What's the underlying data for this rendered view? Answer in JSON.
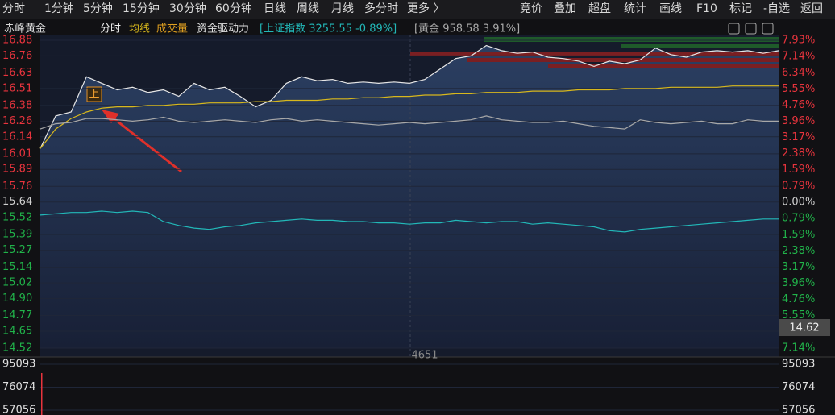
{
  "toolbar": {
    "tabs": [
      "分时",
      "1分钟",
      "5分钟",
      "15分钟",
      "30分钟",
      "60分钟",
      "日线",
      "周线",
      "月线",
      "多分时",
      "更多 〉"
    ],
    "actions": [
      "竞价",
      "叠加",
      "超盘",
      "统计",
      "画线",
      "F10",
      "标记",
      "-自选",
      "返回"
    ]
  },
  "legend": {
    "stock": "赤峰黄金",
    "extra": [
      "成交量",
      "资金驱动力"
    ]
  },
  "chart_data": {
    "type": "line",
    "x": [
      0,
      5,
      10,
      15,
      20,
      25,
      30,
      35,
      40,
      45,
      50,
      55,
      60,
      65,
      70,
      75,
      80,
      85,
      90,
      95,
      100,
      105,
      110,
      115,
      120,
      125,
      130,
      135,
      140,
      145,
      150,
      155,
      160,
      165,
      170,
      175,
      180,
      185,
      190,
      195,
      200,
      205,
      210,
      215,
      220,
      225,
      230,
      235,
      240
    ],
    "xlim": [
      0,
      240
    ],
    "ylim": [
      14.52,
      16.88
    ],
    "yticks": [
      16.88,
      16.76,
      16.63,
      16.51,
      16.38,
      16.26,
      16.14,
      16.01,
      15.89,
      15.76,
      15.64,
      15.52,
      15.39,
      15.27,
      15.14,
      15.02,
      {
        "value": 14.9,
        "label": "14.90"
      },
      14.77,
      14.65,
      14.52
    ],
    "y2lim": [
      -7.14,
      7.93
    ],
    "y2ticks": [
      {
        "value": 7.93,
        "label": "7.93%"
      },
      {
        "value": 7.14,
        "label": "7.14%"
      },
      {
        "value": 6.34,
        "label": "6.34%"
      },
      {
        "value": 5.55,
        "label": "5.55%"
      },
      {
        "value": 4.76,
        "label": "4.76%"
      },
      {
        "value": 3.96,
        "label": "3.96%"
      },
      {
        "value": 3.17,
        "label": "3.17%"
      },
      {
        "value": 2.38,
        "label": "2.38%"
      },
      {
        "value": 1.59,
        "label": "1.59%"
      },
      {
        "value": 0.79,
        "label": "0.79%"
      },
      {
        "value": 0,
        "label": "0.00%"
      },
      {
        "value": -0.79,
        "label": "0.79%"
      },
      {
        "value": -1.59,
        "label": "1.59%"
      },
      {
        "value": -2.38,
        "label": "2.38%"
      },
      {
        "value": -3.17,
        "label": "3.17%"
      },
      {
        "value": -3.96,
        "label": "3.96%"
      },
      {
        "value": -4.76,
        "label": "4.76%"
      },
      {
        "value": -5.55,
        "label": "5.55%"
      },
      {
        "value": -7.14,
        "label": "7.14%"
      }
    ],
    "series": [
      {
        "name": "分时",
        "color": "#e6e6e6",
        "values": [
          16.05,
          16.3,
          16.33,
          16.6,
          16.55,
          16.5,
          16.52,
          16.48,
          16.5,
          16.45,
          16.55,
          16.5,
          16.52,
          16.45,
          16.37,
          16.42,
          16.55,
          16.6,
          16.57,
          16.58,
          16.55,
          16.56,
          16.55,
          16.56,
          16.55,
          16.58,
          16.66,
          16.74,
          16.76,
          16.84,
          16.8,
          16.78,
          16.79,
          16.75,
          16.74,
          16.72,
          16.68,
          16.72,
          16.7,
          16.73,
          16.82,
          16.77,
          16.75,
          16.79,
          16.8,
          16.79,
          16.8,
          16.78,
          16.8
        ]
      },
      {
        "name": "均线",
        "color": "#d8b81c",
        "values": [
          16.05,
          16.2,
          16.28,
          16.33,
          16.36,
          16.37,
          16.37,
          16.38,
          16.38,
          16.39,
          16.39,
          16.4,
          16.4,
          16.4,
          16.41,
          16.41,
          16.42,
          16.42,
          16.42,
          16.43,
          16.43,
          16.44,
          16.44,
          16.45,
          16.45,
          16.46,
          16.46,
          16.47,
          16.47,
          16.48,
          16.48,
          16.48,
          16.49,
          16.49,
          16.49,
          16.5,
          16.5,
          16.5,
          16.51,
          16.51,
          16.51,
          16.52,
          16.52,
          16.52,
          16.52,
          16.53,
          16.53,
          16.53,
          16.53
        ]
      },
      {
        "name": "[上证指数 3255.55 -0.89%]",
        "color": "#22b8b8",
        "values": [
          15.54,
          15.55,
          15.56,
          15.56,
          15.57,
          15.56,
          15.57,
          15.56,
          15.49,
          15.46,
          15.44,
          15.43,
          15.45,
          15.46,
          15.48,
          15.49,
          15.5,
          15.51,
          15.5,
          15.5,
          15.49,
          15.49,
          15.48,
          15.48,
          15.47,
          15.48,
          15.48,
          15.5,
          15.49,
          15.48,
          15.49,
          15.49,
          15.47,
          15.48,
          15.47,
          15.46,
          15.45,
          15.42,
          15.41,
          15.43,
          15.44,
          15.45,
          15.46,
          15.47,
          15.48,
          15.49,
          15.5,
          15.51,
          15.51
        ]
      },
      {
        "name": "[黄金 958.58 3.91%]",
        "color": "#a8a8a8",
        "values": [
          16.2,
          16.24,
          16.25,
          16.28,
          16.28,
          16.27,
          16.26,
          16.27,
          16.29,
          16.26,
          16.25,
          16.26,
          16.27,
          16.26,
          16.25,
          16.27,
          16.28,
          16.26,
          16.27,
          16.26,
          16.25,
          16.24,
          16.23,
          16.24,
          16.25,
          16.24,
          16.25,
          16.26,
          16.27,
          16.3,
          16.27,
          16.26,
          16.25,
          16.25,
          16.26,
          16.24,
          16.22,
          16.21,
          16.2,
          16.27,
          16.25,
          16.24,
          16.25,
          16.26,
          16.24,
          16.24,
          16.27,
          16.26,
          16.26
        ]
      }
    ],
    "annotation": "上",
    "cursor_label": "4651",
    "price_tag": 14.62,
    "volume": {
      "x": [
        0
      ],
      "values": [
        87750
      ],
      "ylim": [
        53052,
        95093
      ],
      "yticks": [
        95093,
        76074,
        57056
      ],
      "color": "#e8343d"
    }
  }
}
